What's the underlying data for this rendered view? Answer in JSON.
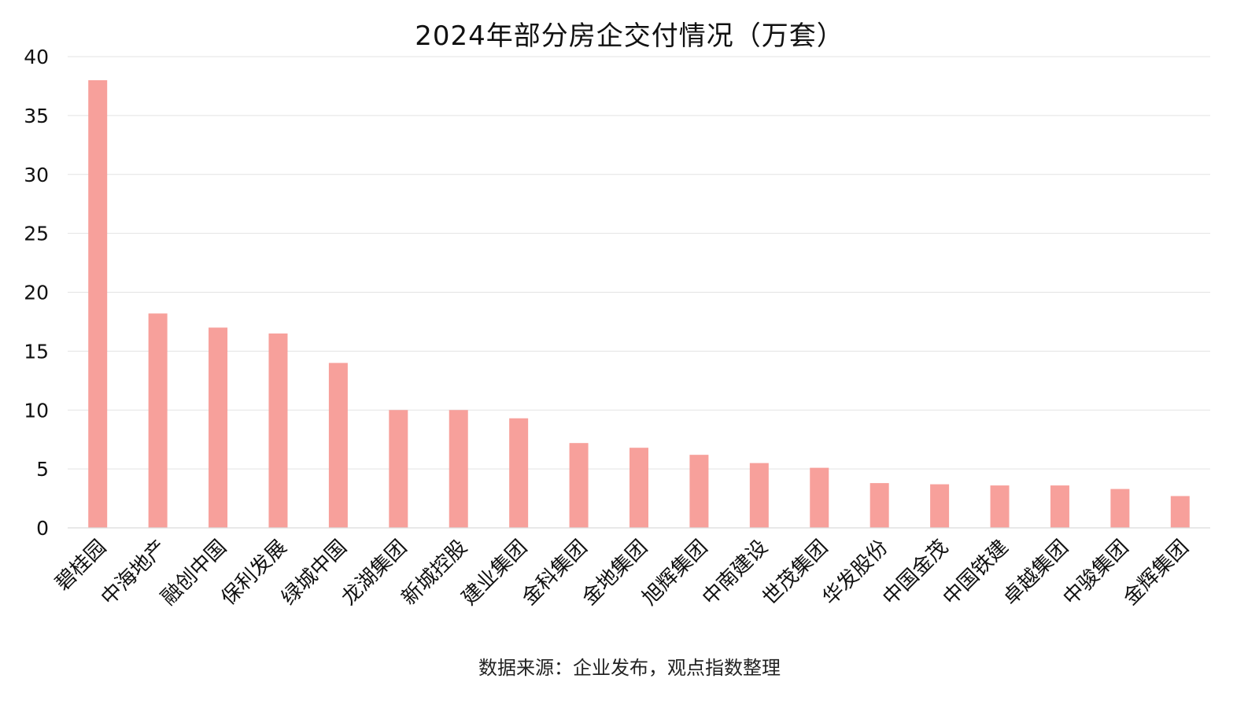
{
  "chart_data": {
    "type": "bar",
    "title": "2024年部分房企交付情况（万套）",
    "xlabel": "",
    "ylabel": "",
    "ylim": [
      0,
      40
    ],
    "yticks": [
      0,
      5,
      10,
      15,
      20,
      25,
      30,
      35,
      40
    ],
    "grid": true,
    "legend": "none",
    "bar_color": "#F7A09B",
    "grid_color": "#E3E3E3",
    "categories": [
      "碧桂园",
      "中海地产",
      "融创中国",
      "保利发展",
      "绿城中国",
      "龙湖集团",
      "新城控股",
      "建业集团",
      "金科集团",
      "金地集团",
      "旭辉集团",
      "中南建设",
      "世茂集团",
      "华发股份",
      "中国金茂",
      "中国铁建",
      "卓越集团",
      "中骏集团",
      "金辉集团"
    ],
    "values": [
      38,
      18.2,
      17,
      16.5,
      14,
      10,
      10,
      9.3,
      7.2,
      6.8,
      6.2,
      5.5,
      5.1,
      3.8,
      3.7,
      3.6,
      3.6,
      3.3,
      2.7
    ]
  },
  "source": "数据来源：企业发布，观点指数整理"
}
